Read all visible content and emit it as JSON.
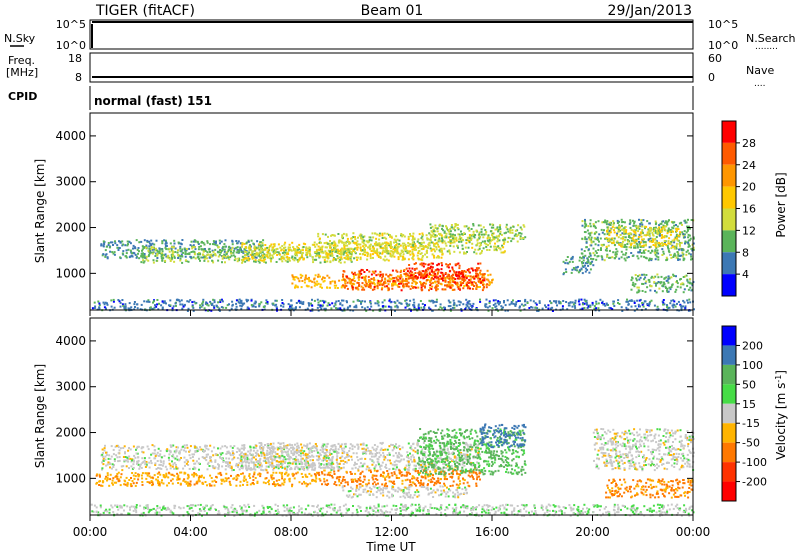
{
  "header": {
    "title": "TIGER (fitACF)",
    "beam": "Beam 01",
    "date": "29/Jan/2013"
  },
  "nsky_panel": {
    "left_label": "N.Sky",
    "right_label": "N.Search",
    "left_ticks": [
      "10^5",
      "10^0"
    ],
    "right_ticks": [
      "10^5",
      "10^0"
    ],
    "legend_mark": "........"
  },
  "freq_panel": {
    "left_label_1": "Freq.",
    "left_label_2": "[MHz]",
    "right_label": "Nave",
    "left_ticks": [
      "18",
      "8"
    ],
    "right_ticks": [
      "60",
      "0"
    ],
    "legend_mark": "....",
    "freq_level": 9.5
  },
  "cpid_panel": {
    "label": "CPID",
    "value": "normal (fast) 151"
  },
  "x_axis": {
    "label": "Time UT",
    "ticks": [
      "00:00",
      "04:00",
      "08:00",
      "12:00",
      "16:00",
      "20:00",
      "00:00"
    ]
  },
  "chart_data": [
    {
      "type": "heatmap",
      "panel": "power",
      "ylabel": "Slant Range [km]",
      "yticks": [
        "4000",
        "3000",
        "2000",
        "1000"
      ],
      "ylim": [
        200,
        4500
      ],
      "xlim_hours": [
        0,
        24
      ],
      "colorbar_label": "Power [dB]",
      "colorbar_ticks": [
        "28",
        "24",
        "20",
        "16",
        "12",
        "8",
        "4"
      ],
      "colorbar_colors": [
        "#ff0000",
        "#ff5a00",
        "#ff9600",
        "#ffc800",
        "#d2dc3c",
        "#5ab45a",
        "#3c78b4",
        "#0000ff"
      ],
      "echo_bands": [
        {
          "t0": 0.4,
          "t1": 7.0,
          "r0": 1350,
          "r1": 1750,
          "value": 6
        },
        {
          "t0": 2.0,
          "t1": 10.5,
          "r0": 1250,
          "r1": 1600,
          "value": 10
        },
        {
          "t0": 6.0,
          "t1": 14.0,
          "r0": 1300,
          "r1": 1700,
          "value": 14
        },
        {
          "t0": 9.0,
          "t1": 16.5,
          "r0": 1450,
          "r1": 1900,
          "value": 12
        },
        {
          "t0": 13.5,
          "t1": 17.3,
          "r0": 1700,
          "r1": 2100,
          "value": 10
        },
        {
          "t0": 8.0,
          "t1": 16.0,
          "r0": 700,
          "r1": 1000,
          "value": 18
        },
        {
          "t0": 10.0,
          "t1": 15.8,
          "r0": 650,
          "r1": 1100,
          "value": 24
        },
        {
          "t0": 12.5,
          "t1": 15.5,
          "r0": 900,
          "r1": 1250,
          "value": 26
        },
        {
          "t0": 0.0,
          "t1": 24.0,
          "r0": 200,
          "r1": 450,
          "value": 4
        },
        {
          "t0": 19.5,
          "t1": 24.0,
          "r0": 1300,
          "r1": 2200,
          "value": 8
        },
        {
          "t0": 20.5,
          "t1": 23.5,
          "r0": 1600,
          "r1": 2050,
          "value": 14
        },
        {
          "t0": 18.8,
          "t1": 20.0,
          "r0": 1000,
          "r1": 1400,
          "value": 6
        },
        {
          "t0": 21.5,
          "t1": 24.0,
          "r0": 600,
          "r1": 1000,
          "value": 8
        }
      ]
    },
    {
      "type": "heatmap",
      "panel": "velocity",
      "ylabel": "Slant Range [km]",
      "yticks": [
        "4000",
        "3000",
        "2000",
        "1000"
      ],
      "ylim": [
        200,
        4500
      ],
      "xlim_hours": [
        0,
        24
      ],
      "colorbar_label": "Velocity [m s-1]",
      "colorbar_ticks": [
        "200",
        "100",
        "50",
        "15",
        "-15",
        "-50",
        "-100",
        "-200"
      ],
      "colorbar_colors": [
        "#0000ff",
        "#3c78b4",
        "#5ab45a",
        "#46dc46",
        "#c8c8c8",
        "#ffb400",
        "#ff7800",
        "#ff3200",
        "#ff0000"
      ],
      "echo_bands": [
        {
          "t0": 0.4,
          "t1": 10.0,
          "r0": 1200,
          "r1": 1750,
          "value": 0
        },
        {
          "t0": 0.2,
          "t1": 9.0,
          "r0": 850,
          "r1": 1150,
          "value": -40
        },
        {
          "t0": 6.0,
          "t1": 15.5,
          "r0": 1200,
          "r1": 1800,
          "value": 0
        },
        {
          "t0": 9.0,
          "t1": 15.5,
          "r0": 850,
          "r1": 1200,
          "value": -60
        },
        {
          "t0": 10.0,
          "t1": 15.0,
          "r0": 600,
          "r1": 850,
          "value": 0
        },
        {
          "t0": 13.0,
          "t1": 17.3,
          "r0": 1100,
          "r1": 2100,
          "value": 60
        },
        {
          "t0": 15.5,
          "t1": 17.3,
          "r0": 1700,
          "r1": 2200,
          "value": 150
        },
        {
          "t0": 0.0,
          "t1": 24.0,
          "r0": 200,
          "r1": 450,
          "value": 10
        },
        {
          "t0": 20.0,
          "t1": 24.0,
          "r0": 1200,
          "r1": 2100,
          "value": 0
        },
        {
          "t0": 20.5,
          "t1": 24.0,
          "r0": 600,
          "r1": 1000,
          "value": -60
        }
      ]
    }
  ]
}
